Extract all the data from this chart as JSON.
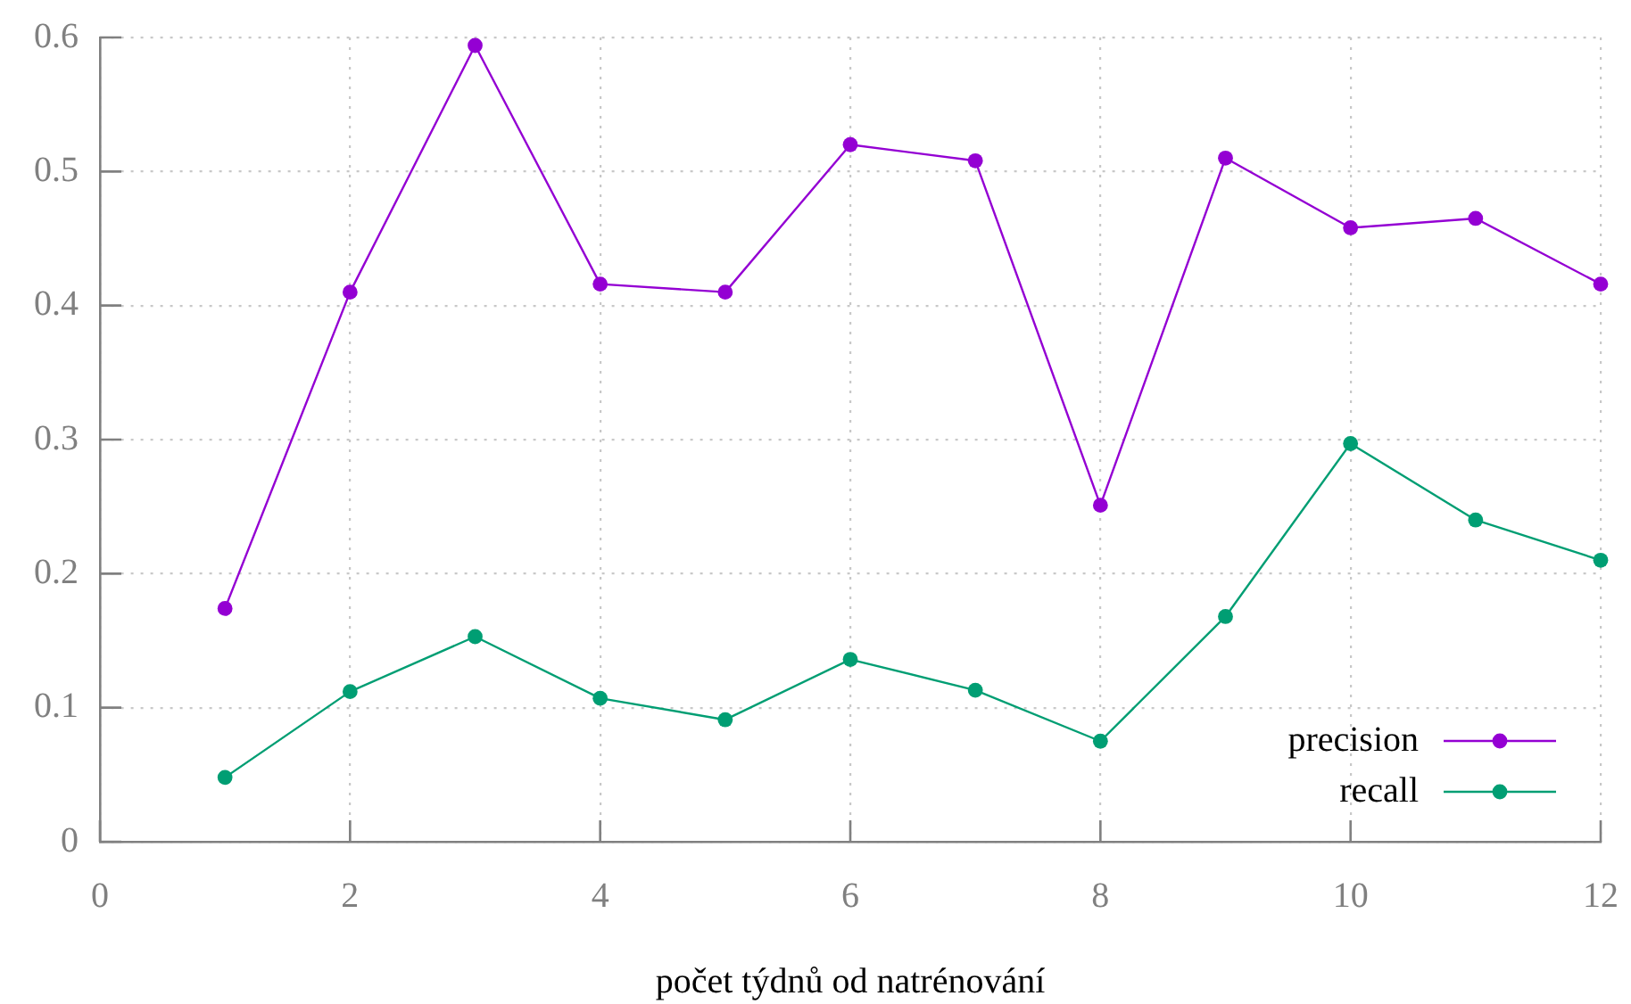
{
  "chart_data": {
    "type": "line",
    "x": [
      1,
      2,
      3,
      4,
      5,
      6,
      7,
      8,
      9,
      10,
      11,
      12
    ],
    "series": [
      {
        "name": "precision",
        "color": "#9400d3",
        "values": [
          0.174,
          0.41,
          0.594,
          0.416,
          0.41,
          0.52,
          0.508,
          0.251,
          0.51,
          0.458,
          0.465,
          0.416
        ]
      },
      {
        "name": "recall",
        "color": "#009e73",
        "values": [
          0.048,
          0.112,
          0.153,
          0.107,
          0.091,
          0.136,
          0.113,
          0.075,
          0.168,
          0.297,
          0.24,
          0.21
        ]
      }
    ],
    "xlabel": "počet týdnů od natrénování",
    "xlim": [
      0,
      12
    ],
    "xticks": [
      0,
      2,
      4,
      6,
      8,
      10,
      12
    ],
    "ylim": [
      0,
      0.6
    ],
    "yticks": [
      0,
      0.1,
      0.2,
      0.3,
      0.4,
      0.5,
      0.6
    ],
    "grid": true,
    "legend": "bottom right",
    "marker": "circle",
    "line_style": "solid"
  }
}
